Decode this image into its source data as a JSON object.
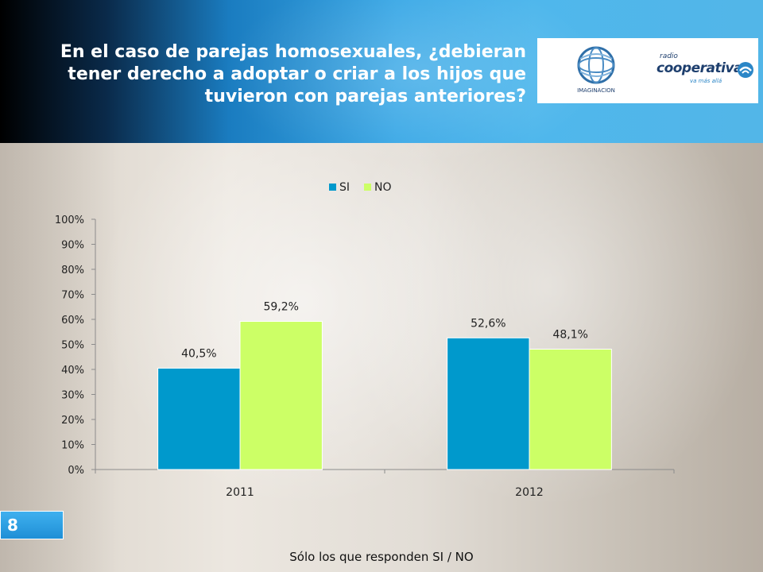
{
  "slide": {
    "title": "En el caso de parejas homosexuales, ¿debieran\ntener derecho a adoptar o criar a los hijos que\ntuvieron con parejas anteriores?",
    "page_number": "8",
    "footnote": "Sólo los que responden SI / NO",
    "logos": {
      "imaginacion_label": "IMAGINACION",
      "cooperativa_radio": "radio",
      "cooperativa_brand": "cooperativa",
      "cooperativa_tagline": "va más allá"
    }
  },
  "colors": {
    "series_si": "#0099CC",
    "series_no": "#CCFF66",
    "axis": "#8c8c8c",
    "header_blue": "#3aa8e6"
  },
  "chart_data": {
    "type": "bar",
    "title": "",
    "xlabel": "",
    "ylabel": "",
    "categories": [
      "2011",
      "2012"
    ],
    "series": [
      {
        "name": "SI",
        "values": [
          40.5,
          52.6
        ],
        "labels": [
          "40,5%",
          "52,6%"
        ],
        "color": "#0099CC"
      },
      {
        "name": "NO",
        "values": [
          59.2,
          48.1
        ],
        "labels": [
          "59,2%",
          "48,1%"
        ],
        "color": "#CCFF66"
      }
    ],
    "ylim": [
      0,
      100
    ],
    "yticks": [
      "0%",
      "10%",
      "20%",
      "30%",
      "40%",
      "50%",
      "60%",
      "70%",
      "80%",
      "90%",
      "100%"
    ],
    "legend_position": "top",
    "grid": false
  }
}
